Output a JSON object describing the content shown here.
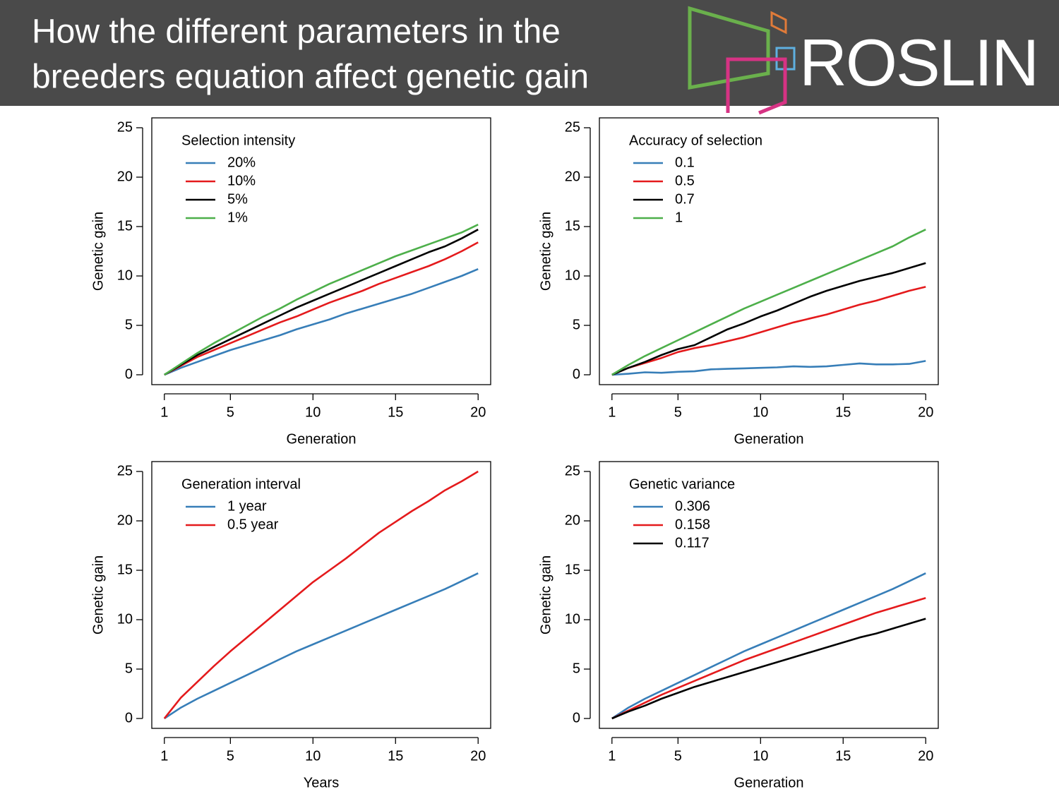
{
  "header": {
    "title": [
      "How the different parameters in the",
      "breeders equation affect genetic gain"
    ],
    "logo": "ROSLIN"
  },
  "chart_data": [
    {
      "type": "line",
      "legend_title": "Selection intensity",
      "x_label": "Generation",
      "y_label": "Genetic gain",
      "x": [
        1,
        2,
        3,
        4,
        5,
        6,
        7,
        8,
        9,
        10,
        11,
        12,
        13,
        14,
        15,
        16,
        17,
        18,
        19,
        20
      ],
      "xlim": [
        0.24,
        20.76
      ],
      "ylim": [
        -1,
        26
      ],
      "xticks": [
        1,
        5,
        10,
        15,
        20
      ],
      "yticks": [
        0,
        5,
        10,
        15,
        20,
        25
      ],
      "series": [
        {
          "name": "20%",
          "color": "#377eb8",
          "values": [
            0,
            0.7,
            1.3,
            1.9,
            2.5,
            3.0,
            3.5,
            4.0,
            4.6,
            5.1,
            5.6,
            6.2,
            6.7,
            7.2,
            7.7,
            8.2,
            8.8,
            9.4,
            10.0,
            10.7
          ]
        },
        {
          "name": "10%",
          "color": "#e41a1c",
          "values": [
            0,
            0.9,
            1.8,
            2.5,
            3.2,
            3.9,
            4.6,
            5.3,
            5.9,
            6.6,
            7.3,
            7.9,
            8.5,
            9.2,
            9.8,
            10.4,
            11.0,
            11.7,
            12.5,
            13.4
          ]
        },
        {
          "name": "5%",
          "color": "#000000",
          "values": [
            0,
            1.0,
            2.0,
            2.8,
            3.6,
            4.4,
            5.2,
            6.0,
            6.8,
            7.5,
            8.2,
            8.9,
            9.6,
            10.3,
            11.0,
            11.7,
            12.4,
            13.0,
            13.8,
            14.7
          ]
        },
        {
          "name": "1%",
          "color": "#4daf4a",
          "values": [
            0,
            1.1,
            2.2,
            3.2,
            4.1,
            5.0,
            5.9,
            6.7,
            7.6,
            8.4,
            9.2,
            9.9,
            10.6,
            11.3,
            12.0,
            12.6,
            13.2,
            13.8,
            14.4,
            15.2
          ]
        }
      ]
    },
    {
      "type": "line",
      "legend_title": "Accuracy of selection",
      "x_label": "Generation",
      "y_label": "Genetic gain",
      "x": [
        1,
        2,
        3,
        4,
        5,
        6,
        7,
        8,
        9,
        10,
        11,
        12,
        13,
        14,
        15,
        16,
        17,
        18,
        19,
        20
      ],
      "xlim": [
        0.24,
        20.76
      ],
      "ylim": [
        -1,
        26
      ],
      "xticks": [
        1,
        5,
        10,
        15,
        20
      ],
      "yticks": [
        0,
        5,
        10,
        15,
        20,
        25
      ],
      "series": [
        {
          "name": "0.1",
          "color": "#377eb8",
          "values": [
            0,
            0.1,
            0.25,
            0.2,
            0.3,
            0.35,
            0.55,
            0.6,
            0.65,
            0.7,
            0.75,
            0.85,
            0.8,
            0.85,
            1.0,
            1.15,
            1.05,
            1.05,
            1.1,
            1.4
          ]
        },
        {
          "name": "0.5",
          "color": "#e41a1c",
          "values": [
            0,
            0.7,
            1.2,
            1.7,
            2.3,
            2.7,
            3.0,
            3.4,
            3.8,
            4.3,
            4.8,
            5.3,
            5.7,
            6.1,
            6.6,
            7.1,
            7.5,
            8.0,
            8.5,
            8.9
          ]
        },
        {
          "name": "0.7",
          "color": "#000000",
          "values": [
            0,
            0.7,
            1.3,
            2.0,
            2.6,
            3.0,
            3.8,
            4.6,
            5.2,
            5.9,
            6.5,
            7.2,
            7.9,
            8.5,
            9.0,
            9.5,
            9.9,
            10.3,
            10.8,
            11.3
          ]
        },
        {
          "name": "1",
          "color": "#4daf4a",
          "values": [
            0,
            1.0,
            1.9,
            2.7,
            3.5,
            4.3,
            5.1,
            5.9,
            6.7,
            7.4,
            8.1,
            8.8,
            9.5,
            10.2,
            10.9,
            11.6,
            12.3,
            13.0,
            13.9,
            14.7
          ]
        }
      ]
    },
    {
      "type": "line",
      "legend_title": "Generation interval",
      "x_label": "Years",
      "y_label": "Genetic gain",
      "x": [
        1,
        2,
        3,
        4,
        5,
        6,
        7,
        8,
        9,
        10,
        11,
        12,
        13,
        14,
        15,
        16,
        17,
        18,
        19,
        20
      ],
      "xlim": [
        0.24,
        20.76
      ],
      "ylim": [
        -1,
        26
      ],
      "xticks": [
        1,
        5,
        10,
        15,
        20
      ],
      "yticks": [
        0,
        5,
        10,
        15,
        20,
        25
      ],
      "series": [
        {
          "name": "1 year",
          "color": "#377eb8",
          "values": [
            0,
            1.1,
            2.0,
            2.8,
            3.6,
            4.4,
            5.2,
            6.0,
            6.8,
            7.5,
            8.2,
            8.9,
            9.6,
            10.3,
            11.0,
            11.7,
            12.4,
            13.1,
            13.9,
            14.7
          ]
        },
        {
          "name": "0.5 year",
          "color": "#e41a1c",
          "values": [
            0,
            2.1,
            3.7,
            5.3,
            6.8,
            8.2,
            9.6,
            11.0,
            12.4,
            13.8,
            15.0,
            16.2,
            17.5,
            18.8,
            19.9,
            21.0,
            22.0,
            23.1,
            24.0,
            25.0
          ]
        }
      ]
    },
    {
      "type": "line",
      "legend_title": "Genetic variance",
      "x_label": "Generation",
      "y_label": "Genetic gain",
      "x": [
        1,
        2,
        3,
        4,
        5,
        6,
        7,
        8,
        9,
        10,
        11,
        12,
        13,
        14,
        15,
        16,
        17,
        18,
        19,
        20
      ],
      "xlim": [
        0.24,
        20.76
      ],
      "ylim": [
        -1,
        26
      ],
      "xticks": [
        1,
        5,
        10,
        15,
        20
      ],
      "yticks": [
        0,
        5,
        10,
        15,
        20,
        25
      ],
      "series": [
        {
          "name": "0.306",
          "color": "#377eb8",
          "values": [
            0,
            1.1,
            2.0,
            2.8,
            3.6,
            4.4,
            5.2,
            6.0,
            6.8,
            7.5,
            8.2,
            8.9,
            9.6,
            10.3,
            11.0,
            11.7,
            12.4,
            13.1,
            13.9,
            14.7
          ]
        },
        {
          "name": "0.158",
          "color": "#e41a1c",
          "values": [
            0,
            0.8,
            1.6,
            2.4,
            3.1,
            3.8,
            4.5,
            5.2,
            5.9,
            6.5,
            7.1,
            7.7,
            8.3,
            8.9,
            9.5,
            10.1,
            10.7,
            11.2,
            11.7,
            12.2
          ]
        },
        {
          "name": "0.117",
          "color": "#000000",
          "values": [
            0,
            0.7,
            1.3,
            2.0,
            2.6,
            3.2,
            3.7,
            4.2,
            4.7,
            5.2,
            5.7,
            6.2,
            6.7,
            7.2,
            7.7,
            8.2,
            8.6,
            9.1,
            9.6,
            10.1
          ]
        }
      ]
    }
  ]
}
